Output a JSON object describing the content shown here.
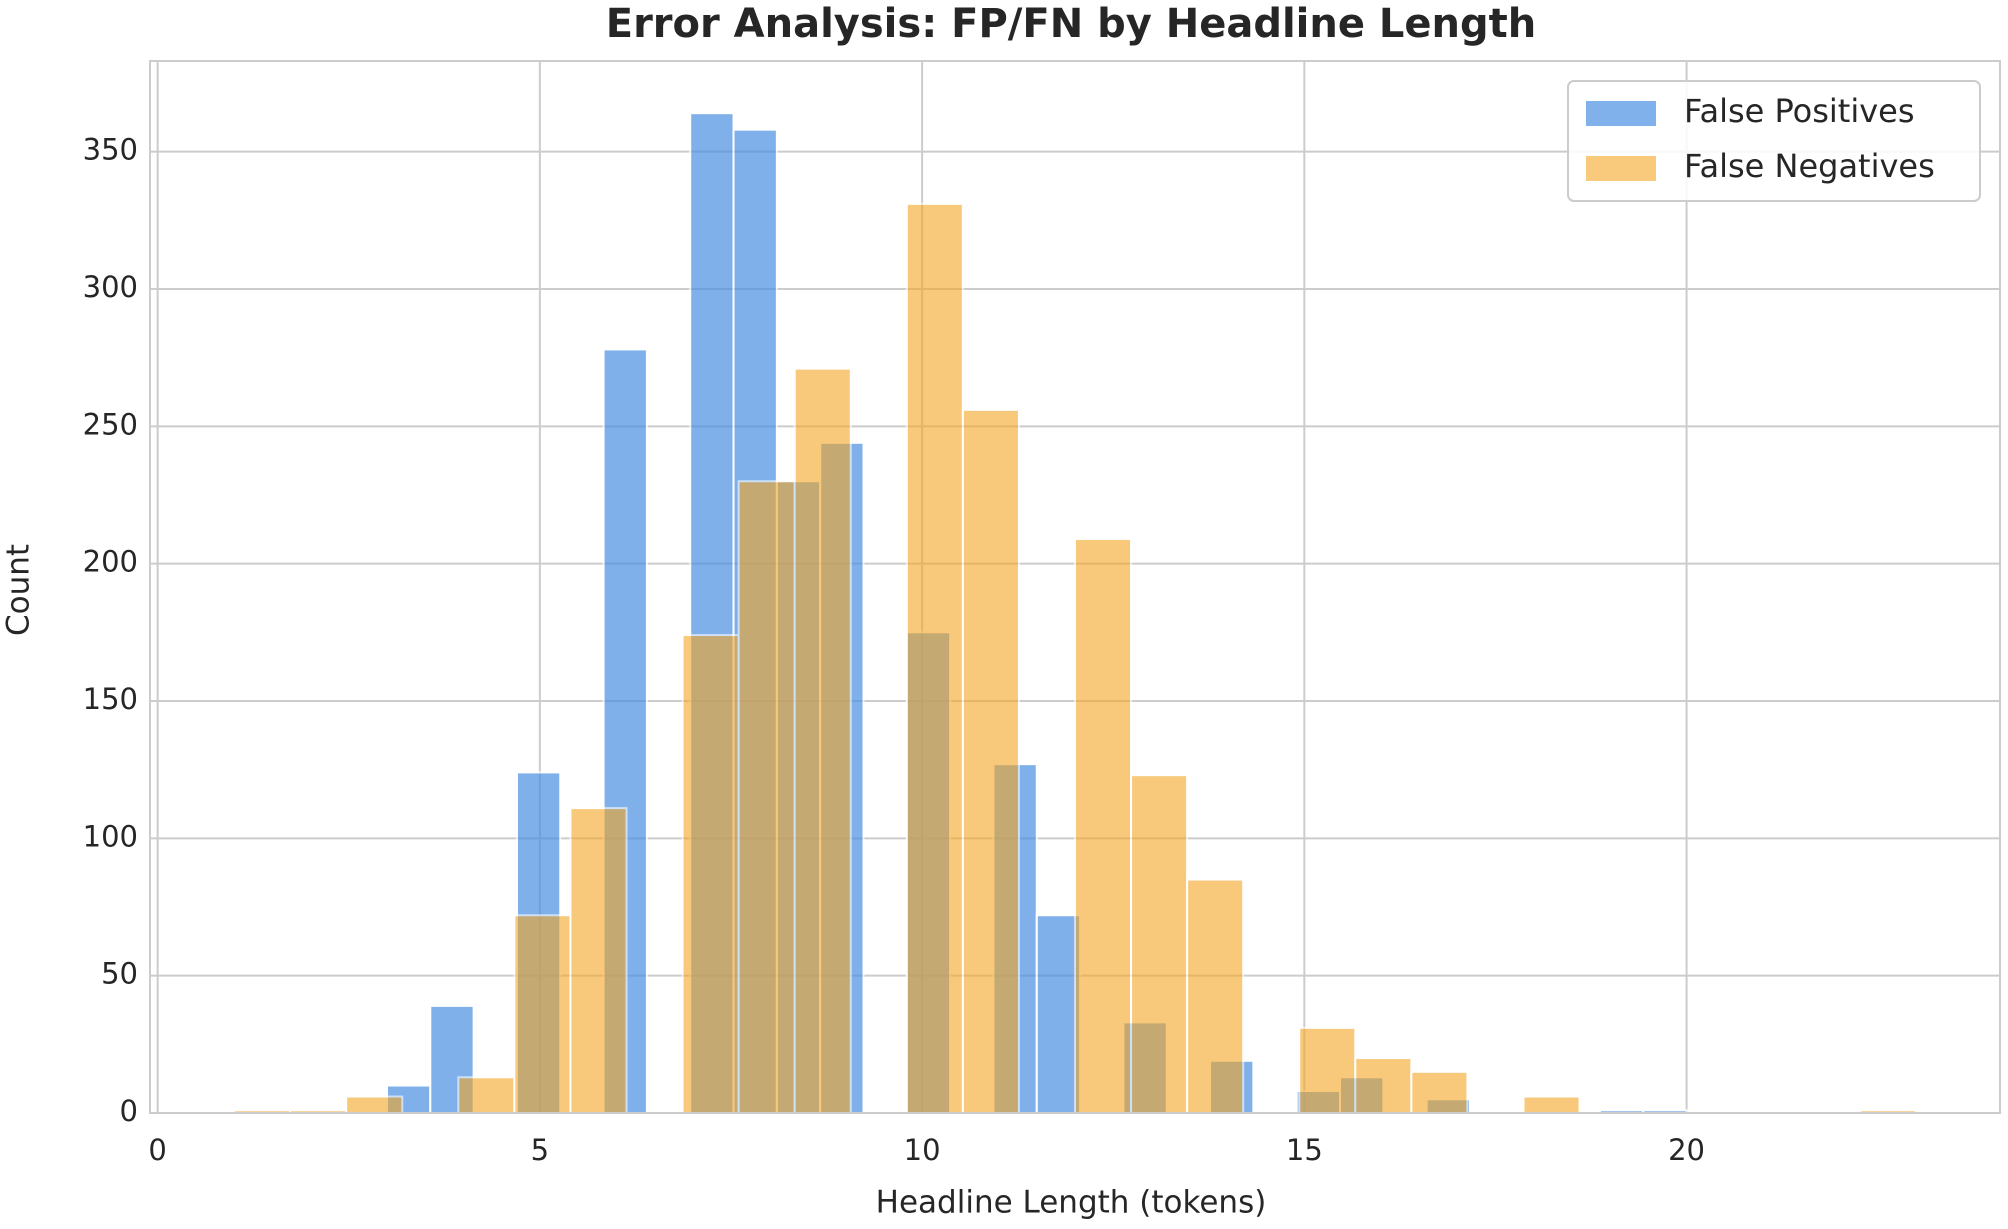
{
  "chart_data": {
    "type": "histogram",
    "title": "Error Analysis: FP/FN by Headline Length",
    "x_label": "Headline Length (tokens)",
    "y_label": "Count",
    "xlim": [
      -0.1,
      24.1
    ],
    "ylim": [
      0,
      383
    ],
    "xticks": [
      0,
      5,
      10,
      15,
      20
    ],
    "yticks": [
      0,
      50,
      100,
      150,
      200,
      250,
      300,
      350
    ],
    "grid": true,
    "legend": "upper right",
    "series": [
      {
        "name": "False Positives",
        "color": "#4a90e2",
        "alpha": 0.7,
        "bins": [
          3,
          3.5667,
          4.1333,
          4.7,
          5.2667,
          5.8333,
          6.4,
          6.9667,
          7.5333,
          8.1,
          8.6667,
          9.2333,
          9.8,
          10.3667,
          10.9333,
          11.5,
          12.0667,
          12.6333,
          13.2,
          13.7667,
          14.3333,
          14.9,
          15.4667,
          16.0333,
          16.6,
          17.1667,
          17.7333,
          18.3,
          18.8667,
          19.4333,
          20
        ],
        "values": [
          10,
          39,
          0,
          124,
          0,
          278,
          0,
          364,
          358,
          230,
          244,
          0,
          175,
          0,
          127,
          72,
          0,
          33,
          0,
          19,
          0,
          8,
          13,
          0,
          5,
          0,
          0,
          0,
          1,
          1
        ]
      },
      {
        "name": "False Negatives",
        "color": "#f5a623",
        "alpha": 0.6,
        "bins": [
          1,
          1.7333,
          2.4667,
          3.2,
          3.9333,
          4.6667,
          5.4,
          6.1333,
          6.8667,
          7.6,
          8.3333,
          9.0667,
          9.8,
          10.5333,
          11.2667,
          12,
          12.7333,
          13.4667,
          14.2,
          14.9333,
          15.6667,
          16.4,
          17.1333,
          17.8667,
          18.6,
          19.3333,
          20.0667,
          20.8,
          21.5333,
          22.2667,
          23
        ],
        "values": [
          1,
          1,
          6,
          0,
          13,
          72,
          111,
          0,
          174,
          230,
          271,
          0,
          331,
          256,
          0,
          209,
          123,
          85,
          0,
          31,
          20,
          15,
          0,
          6,
          0,
          0,
          0,
          0,
          0,
          1
        ]
      }
    ]
  }
}
